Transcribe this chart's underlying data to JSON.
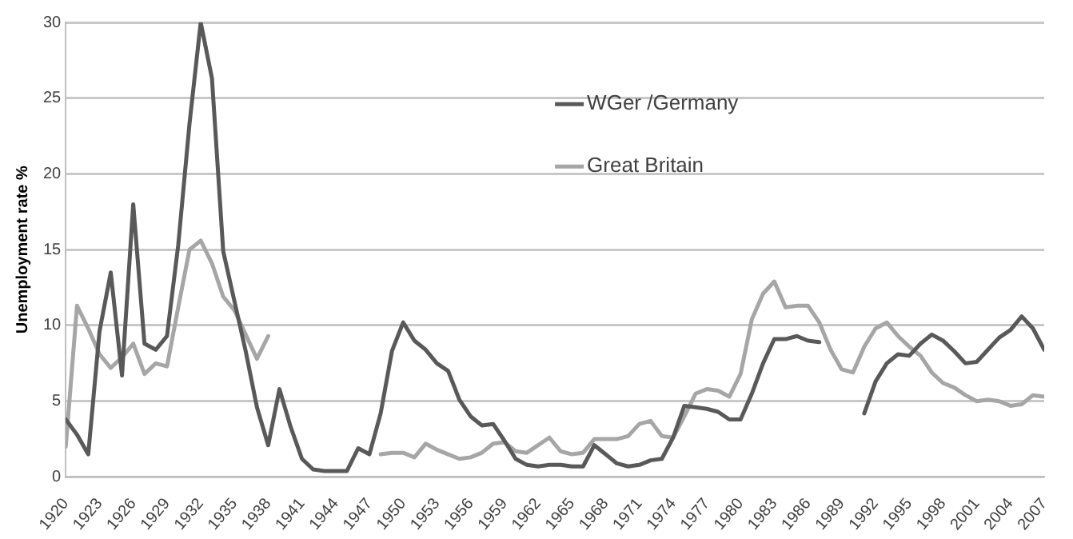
{
  "chart_data": {
    "type": "line",
    "ylabel": "Unemployment rate %",
    "x": [
      1920,
      1921,
      1922,
      1923,
      1924,
      1925,
      1926,
      1927,
      1928,
      1929,
      1930,
      1931,
      1932,
      1933,
      1934,
      1935,
      1936,
      1937,
      1938,
      1939,
      1940,
      1941,
      1942,
      1943,
      1944,
      1945,
      1946,
      1947,
      1948,
      1949,
      1950,
      1951,
      1952,
      1953,
      1954,
      1955,
      1956,
      1957,
      1958,
      1959,
      1960,
      1961,
      1962,
      1963,
      1964,
      1965,
      1966,
      1967,
      1968,
      1969,
      1970,
      1971,
      1972,
      1973,
      1974,
      1975,
      1976,
      1977,
      1978,
      1979,
      1980,
      1981,
      1982,
      1983,
      1984,
      1985,
      1986,
      1987,
      1988,
      1989,
      1990,
      1991,
      1992,
      1993,
      1994,
      1995,
      1996,
      1997,
      1998,
      1999,
      2000,
      2001,
      2002,
      2003,
      2004,
      2005,
      2006,
      2007
    ],
    "series": [
      {
        "name": "WGer /Germany",
        "color": "#595959",
        "values": [
          3.8,
          2.8,
          1.5,
          9.6,
          13.5,
          6.7,
          18.0,
          8.8,
          8.4,
          9.3,
          15.3,
          23.3,
          30.0,
          26.3,
          14.9,
          11.6,
          8.3,
          4.6,
          2.1,
          5.8,
          3.3,
          1.2,
          0.5,
          0.4,
          0.4,
          0.4,
          1.9,
          1.5,
          4.2,
          8.3,
          10.2,
          9.0,
          8.4,
          7.5,
          7.0,
          5.1,
          4.0,
          3.4,
          3.5,
          2.4,
          1.2,
          0.8,
          0.7,
          0.8,
          0.8,
          0.7,
          0.7,
          2.1,
          1.5,
          0.9,
          0.7,
          0.8,
          1.1,
          1.2,
          2.6,
          4.7,
          4.6,
          4.5,
          4.3,
          3.8,
          3.8,
          5.5,
          7.5,
          9.1,
          9.1,
          9.3,
          9.0,
          8.9,
          null,
          null,
          null,
          4.2,
          6.3,
          7.5,
          8.1,
          8.0,
          8.8,
          9.4,
          9.0,
          8.3,
          7.5,
          7.6,
          8.4,
          9.2,
          9.7,
          10.6,
          9.8,
          8.4
        ]
      },
      {
        "name": "Great Britain",
        "color": "#a6a6a6",
        "values": [
          2.0,
          11.3,
          9.8,
          8.1,
          7.2,
          7.9,
          8.8,
          6.8,
          7.5,
          7.3,
          11.2,
          15.0,
          15.6,
          14.1,
          11.9,
          11.0,
          9.4,
          7.8,
          9.3,
          null,
          null,
          null,
          null,
          null,
          null,
          null,
          null,
          null,
          1.5,
          1.6,
          1.6,
          1.3,
          2.2,
          1.8,
          1.5,
          1.2,
          1.3,
          1.6,
          2.2,
          2.3,
          1.7,
          1.6,
          2.1,
          2.6,
          1.7,
          1.5,
          1.6,
          2.5,
          2.5,
          2.5,
          2.7,
          3.5,
          3.7,
          2.7,
          2.6,
          4.0,
          5.5,
          5.8,
          5.7,
          5.3,
          6.8,
          10.4,
          12.1,
          12.9,
          11.2,
          11.3,
          11.3,
          10.2,
          8.4,
          7.1,
          6.9,
          8.6,
          9.8,
          10.2,
          9.3,
          8.6,
          8.0,
          6.9,
          6.2,
          5.9,
          5.4,
          5.0,
          5.1,
          5.0,
          4.7,
          4.8,
          5.4,
          5.3
        ]
      }
    ],
    "xlim": [
      1920,
      2007
    ],
    "xticks": [
      1920,
      1923,
      1926,
      1929,
      1932,
      1935,
      1938,
      1941,
      1944,
      1947,
      1950,
      1953,
      1956,
      1959,
      1962,
      1965,
      1968,
      1971,
      1974,
      1977,
      1980,
      1983,
      1986,
      1989,
      1992,
      1995,
      1998,
      2001,
      2004,
      2007
    ],
    "ylim": [
      0,
      30
    ],
    "yticks": [
      0,
      5,
      10,
      15,
      20,
      25,
      30
    ],
    "grid": "y",
    "legend": "top right",
    "marker": "none",
    "line_style": "solid"
  }
}
